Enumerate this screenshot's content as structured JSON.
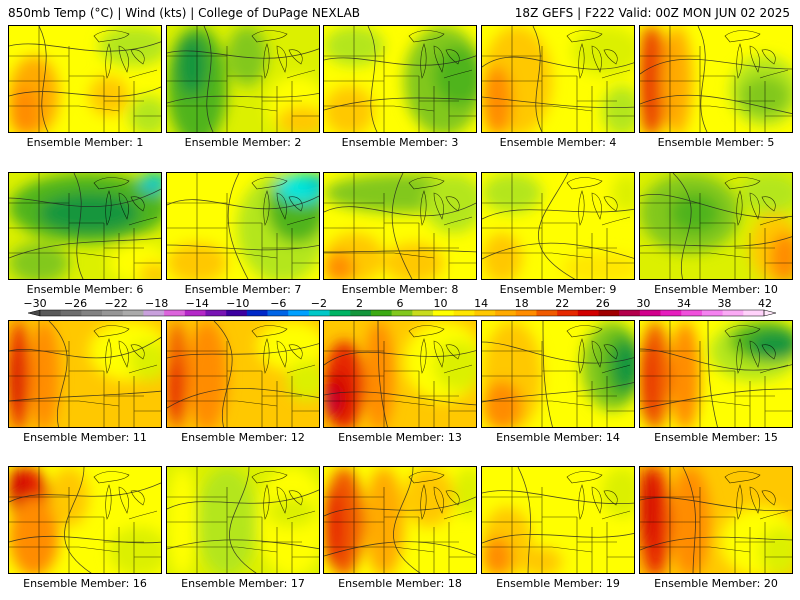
{
  "header": {
    "left": "850mb Temp (°C) | Wind (kts) | College of DuPage NEXLAB",
    "right": "18Z GEFS | F222 Valid: 00Z MON JUN 02 2025"
  },
  "caption_prefix": "Ensemble Member:",
  "members": [
    {
      "id": "1",
      "style": "yellow-orange-west"
    },
    {
      "id": "2",
      "style": "green-west"
    },
    {
      "id": "3",
      "style": "yellow-green-east"
    },
    {
      "id": "4",
      "style": "orange-yellow"
    },
    {
      "id": "5",
      "style": "red-west-green-east"
    },
    {
      "id": "6",
      "style": "green-north"
    },
    {
      "id": "7",
      "style": "cyan-northeast"
    },
    {
      "id": "8",
      "style": "green-north-orange-south"
    },
    {
      "id": "9",
      "style": "yellow-low"
    },
    {
      "id": "10",
      "style": "green-low-west"
    },
    {
      "id": "11",
      "style": "red-west"
    },
    {
      "id": "12",
      "style": "red-southwest"
    },
    {
      "id": "13",
      "style": "red-hot-west"
    },
    {
      "id": "14",
      "style": "green-northeast"
    },
    {
      "id": "15",
      "style": "green-north-red-west"
    },
    {
      "id": "16",
      "style": "red-northwest"
    },
    {
      "id": "17",
      "style": "yellow-green"
    },
    {
      "id": "18",
      "style": "red-west-orange"
    },
    {
      "id": "19",
      "style": "yellow-orange-southwest"
    },
    {
      "id": "20",
      "style": "red-west-orange-north"
    }
  ],
  "colorbar": {
    "labels": [
      "−30",
      "−26",
      "−22",
      "−18",
      "−14",
      "−10",
      "−6",
      "−2",
      "2",
      "6",
      "10",
      "14",
      "18",
      "22",
      "26",
      "30",
      "34",
      "38",
      "42"
    ],
    "colors": [
      "#5a5a5a",
      "#6e6e6e",
      "#828282",
      "#969696",
      "#aaaaaa",
      "#c8a0dc",
      "#dc64dc",
      "#b428c8",
      "#7814b4",
      "#3c00a0",
      "#0028c8",
      "#0064e6",
      "#00a0ff",
      "#00c8c8",
      "#00b464",
      "#14963c",
      "#3caa14",
      "#82c81e",
      "#c8dc1e",
      "#ffff00",
      "#ffe600",
      "#ffc800",
      "#ffaa00",
      "#ff8c00",
      "#f05a00",
      "#e62800",
      "#d20000",
      "#a00000",
      "#b4004b",
      "#d2008c",
      "#e61ebe",
      "#f050dc",
      "#f582f0",
      "#faaaf5",
      "#ffd2fa"
    ]
  }
}
